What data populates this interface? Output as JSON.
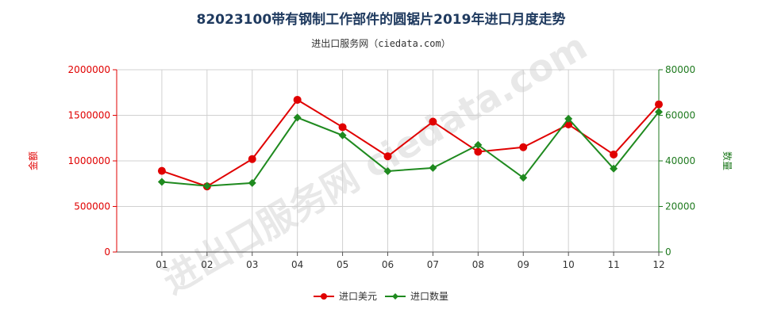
{
  "title": "82023100带有钢制工作部件的圆锯片2019年进口月度走势",
  "subtitle": "进出口服务网（ciedata.com）",
  "watermark": "进出口服务网 ciedata.com",
  "colors": {
    "amount": "#e00000",
    "quantity": "#1f8a1f",
    "grid": "#d0d0d0"
  },
  "chart_data": {
    "type": "line",
    "categories": [
      "01",
      "02",
      "03",
      "04",
      "05",
      "06",
      "07",
      "08",
      "09",
      "10",
      "11",
      "12"
    ],
    "ylabel_left": "金额",
    "ylabel_right": "数量",
    "ylim_left": [
      0,
      2000000
    ],
    "ylim_right": [
      0,
      80000
    ],
    "yticks_left": [
      "0",
      "500000",
      "1000000",
      "1500000",
      "2000000"
    ],
    "yticks_right": [
      "0",
      "20000",
      "40000",
      "60000",
      "80000"
    ],
    "grid": true,
    "legend_position": "bottom-center",
    "series": [
      {
        "name": "进口美元",
        "axis": "left",
        "color": "#e00000",
        "values": [
          890000,
          720000,
          1020000,
          1670000,
          1370000,
          1050000,
          1430000,
          1100000,
          1150000,
          1400000,
          1070000,
          1620000
        ]
      },
      {
        "name": "进口数量",
        "axis": "right",
        "color": "#1f8a1f",
        "values": [
          30800,
          29000,
          30300,
          59000,
          51200,
          35500,
          36900,
          47000,
          32600,
          58500,
          36600,
          61500
        ]
      }
    ]
  }
}
